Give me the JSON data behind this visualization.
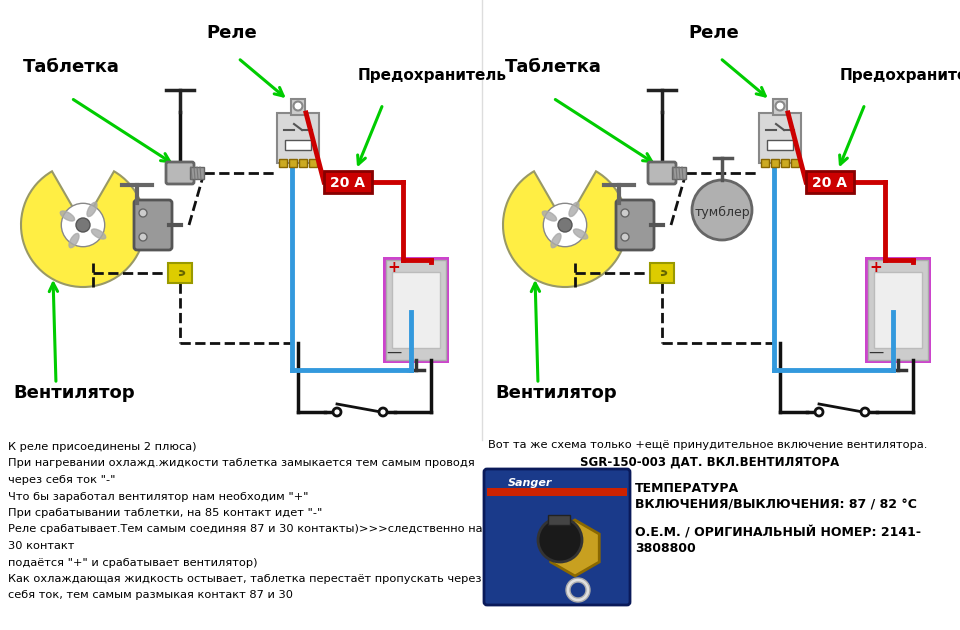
{
  "bg_color": "#ffffff",
  "left_diagram": {
    "label_tabletka": "Таблетка",
    "label_rele": "Реле",
    "label_predohranitel": "Предохранитель",
    "label_ventilyator": "Вентилятор",
    "fuse_label": "20 А"
  },
  "right_diagram": {
    "label_tabletka": "Таблетка",
    "label_rele": "Реле",
    "label_predohranitel": "Предохранитель",
    "label_ventilyator": "Вентилятор",
    "label_tumbler": "тумблер",
    "fuse_label": "20 А"
  },
  "bottom_left_text": [
    "К реле присоединены 2 плюса)",
    "При нагревании охлажд.жидкости таблетка замыкается тем самым проводя",
    "через себя ток \"-\"",
    "Что бы заработал вентилятор нам необходим \"+\"",
    "При срабатывании таблетки, на 85 контакт идет \"-\"",
    "Реле срабатывает.Тем самым соединяя 87 и 30 контакты)>>>следственно на",
    "30 контакт",
    "подаётся \"+\" и срабатывает вентилятор)",
    "Как охлаждающая жидкость остывает, таблетка перестаёт пропускать через",
    "себя ток, тем самым размыкая контакт 87 и 30"
  ],
  "bottom_right_line1": "Вот та же схема только +ещё принудительное включение вентилятора.",
  "bottom_right_line2": "SGR-150-003 ДАТ. ВКЛ.ВЕНТИЛЯТОРА",
  "bottom_right_line3": "ТЕМПЕРАТУРА",
  "bottom_right_line4": "ВКЛЮЧЕНИЯ/ВЫКЛЮЧЕНИЯ: 87 / 82 °С",
  "bottom_right_line5": "О.Е.М. / ОРИГИНАЛЬНЫЙ НОМЕР: 2141-",
  "bottom_right_line6": "3808800",
  "arrow_color": "#00cc00",
  "wire_red": "#cc0000",
  "wire_blue": "#3399dd",
  "wire_black": "#111111",
  "fuse_color": "#cc0000",
  "battery_border": "#cc44cc",
  "fan_yellow": "#ffee44",
  "fan_gray": "#888888"
}
